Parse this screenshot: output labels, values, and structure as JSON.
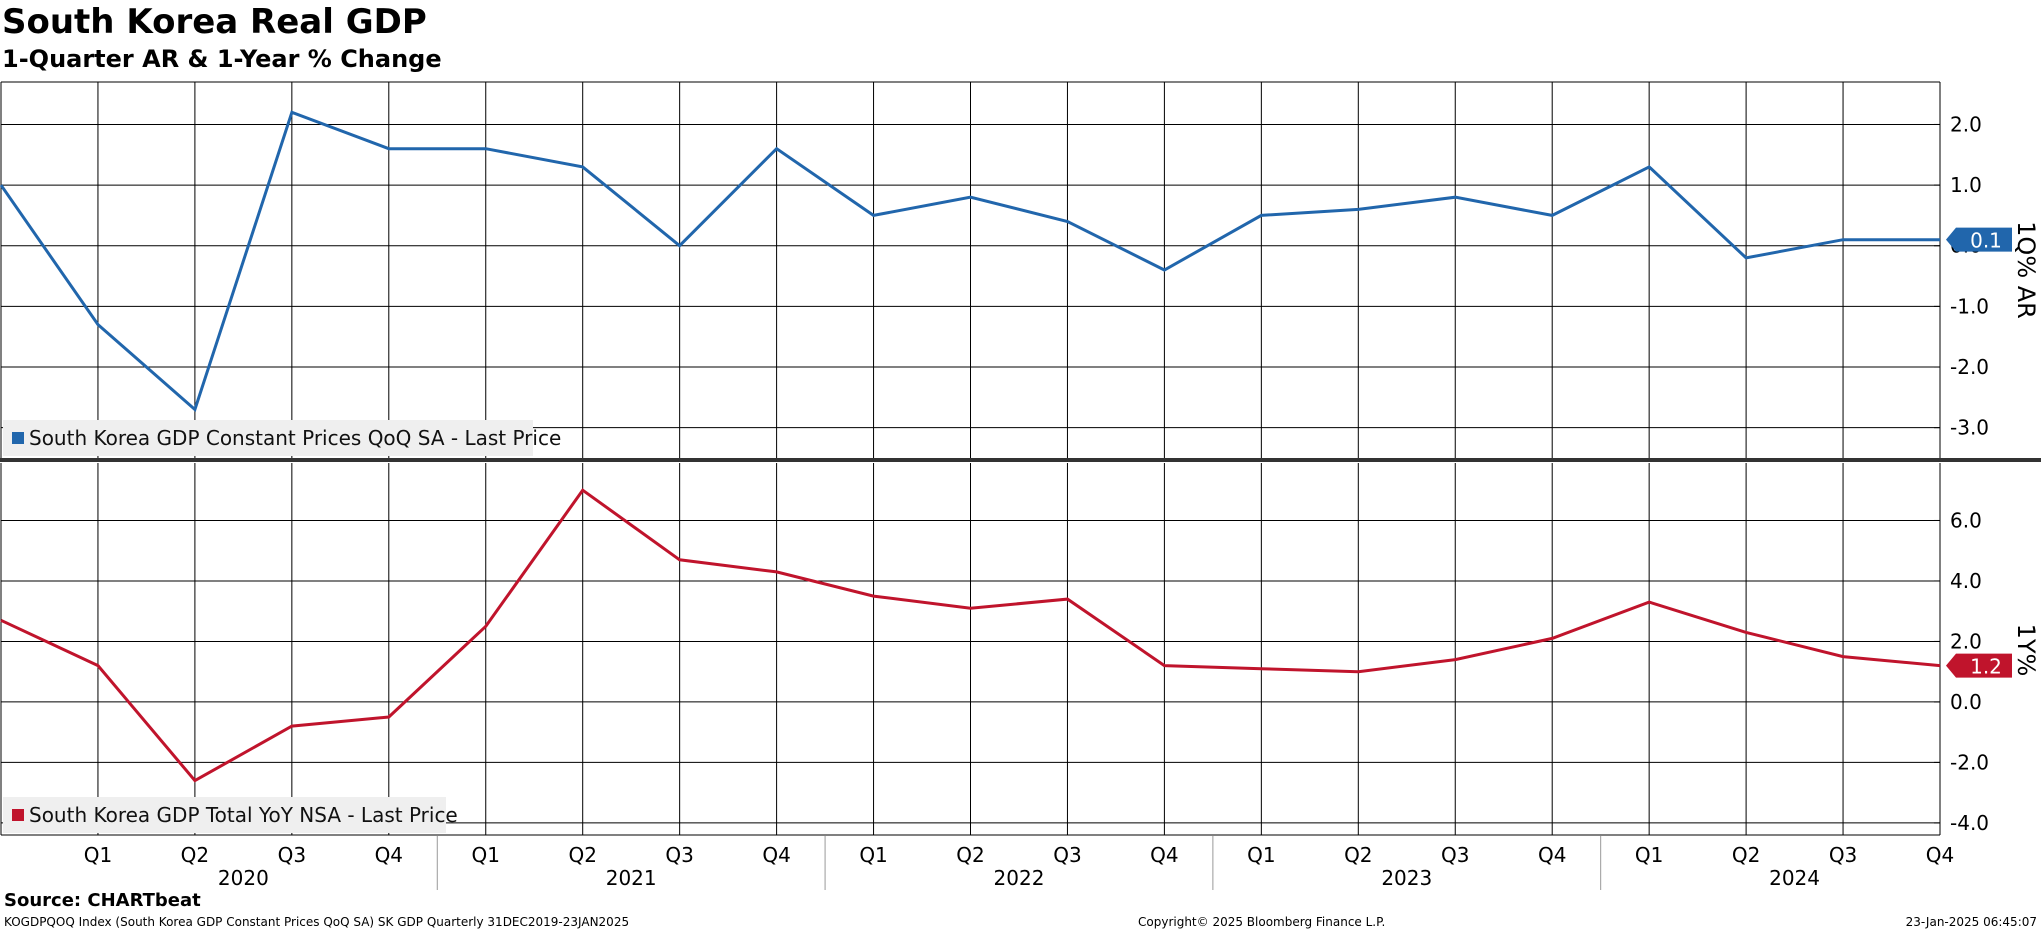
{
  "header": {
    "title": "South Korea Real GDP",
    "subtitle": "1-Quarter AR & 1-Year % Change"
  },
  "footer": {
    "source": "Source: CHARTbeat",
    "index_info": "KOGDPQOQ Index (South Korea GDP Constant Prices QoQ SA) SK GDP  Quarterly 31DEC2019-23JAN2025",
    "copyright": "Copyright© 2025 Bloomberg Finance L.P.",
    "timestamp": "23-Jan-2025 06:45:07"
  },
  "colors": {
    "qoq": "#2166ac",
    "yoy": "#c0142c",
    "grid": "#000000",
    "legend_bg": "#efefef"
  },
  "chart_data": [
    {
      "type": "line",
      "ylabel": "1Q% AR",
      "ylim": [
        -3.5,
        2.7
      ],
      "yticks": [
        2.0,
        1.0,
        0.0,
        -1.0,
        -2.0,
        -3.0
      ],
      "ytick_labels": [
        "2.0",
        "1.0",
        "0.0",
        "-1.0",
        "-2.0",
        "-3.0"
      ],
      "grid": true,
      "legend": "bottom-left",
      "x": [
        "2019 Q4",
        "2020 Q1",
        "2020 Q2",
        "2020 Q3",
        "2020 Q4",
        "2021 Q1",
        "2021 Q2",
        "2021 Q3",
        "2021 Q4",
        "2022 Q1",
        "2022 Q2",
        "2022 Q3",
        "2022 Q4",
        "2023 Q1",
        "2023 Q2",
        "2023 Q3",
        "2023 Q4",
        "2024 Q1",
        "2024 Q2",
        "2024 Q3",
        "2024 Q4"
      ],
      "series": [
        {
          "name": "South Korea GDP Constant Prices QoQ SA - Last Price",
          "values": [
            1.0,
            -1.3,
            -2.7,
            2.2,
            1.6,
            1.6,
            1.3,
            0.0,
            1.6,
            0.5,
            0.8,
            0.4,
            -0.4,
            0.5,
            0.6,
            0.8,
            0.5,
            1.3,
            -0.2,
            0.1,
            0.1
          ],
          "last_value": "0.1"
        }
      ]
    },
    {
      "type": "line",
      "ylabel": "1Y%",
      "ylim": [
        -4.4,
        7.9
      ],
      "yticks": [
        6.0,
        4.0,
        2.0,
        0.0,
        -2.0,
        -4.0
      ],
      "ytick_labels": [
        "6.0",
        "4.0",
        "2.0",
        "0.0",
        "-2.0",
        "-4.0"
      ],
      "grid": true,
      "legend": "bottom-left",
      "x": [
        "2019 Q4",
        "2020 Q1",
        "2020 Q2",
        "2020 Q3",
        "2020 Q4",
        "2021 Q1",
        "2021 Q2",
        "2021 Q3",
        "2021 Q4",
        "2022 Q1",
        "2022 Q2",
        "2022 Q3",
        "2022 Q4",
        "2023 Q1",
        "2023 Q2",
        "2023 Q3",
        "2023 Q4",
        "2024 Q1",
        "2024 Q2",
        "2024 Q3",
        "2024 Q4"
      ],
      "series": [
        {
          "name": "South Korea GDP Total YoY NSA - Last Price",
          "values": [
            2.7,
            1.2,
            -2.6,
            -0.8,
            -0.5,
            2.5,
            7.0,
            4.7,
            4.3,
            3.5,
            3.1,
            3.4,
            1.2,
            1.1,
            1.0,
            1.4,
            2.1,
            3.3,
            2.3,
            1.5,
            1.2
          ],
          "last_value": "1.2"
        }
      ]
    }
  ],
  "x_axis": {
    "quarter_labels": [
      "Q1",
      "Q2",
      "Q3",
      "Q4",
      "Q1",
      "Q2",
      "Q3",
      "Q4",
      "Q1",
      "Q2",
      "Q3",
      "Q4",
      "Q1",
      "Q2",
      "Q3",
      "Q4",
      "Q1",
      "Q2",
      "Q3",
      "Q4"
    ],
    "years": [
      "2020",
      "2021",
      "2022",
      "2023",
      "2024"
    ]
  }
}
